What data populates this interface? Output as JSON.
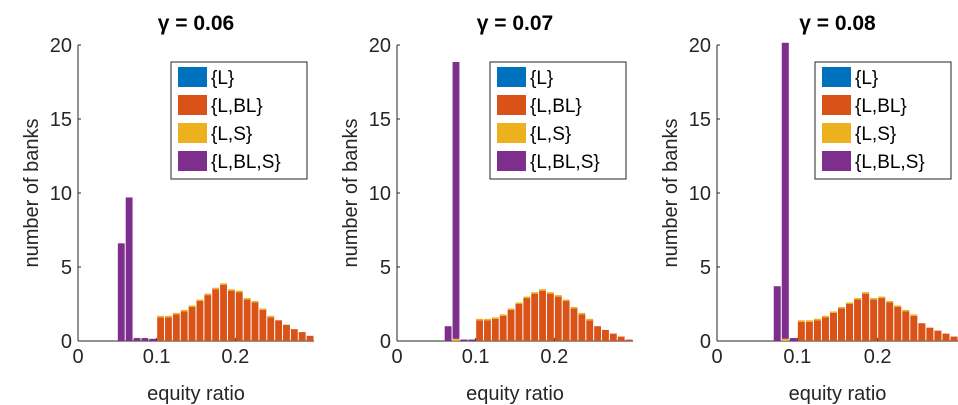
{
  "figure": {
    "background": "#ffffff",
    "series_colors": {
      "{L}": "#0072BD",
      "{L,BL}": "#D95319",
      "{L,S}": "#EDB120",
      "{L,BL,S}": "#7E2F8E"
    }
  },
  "chart_data": [
    {
      "type": "bar",
      "stacked": true,
      "title": "γ = 0.06",
      "xlabel": "equity ratio",
      "ylabel": "number of banks",
      "xlim": [
        0,
        0.3
      ],
      "ylim": [
        0,
        20
      ],
      "xticks": [
        0,
        0.1,
        0.2
      ],
      "xtick_labels": [
        "0",
        "0.1",
        "0.2"
      ],
      "yticks": [
        0,
        5,
        10,
        15,
        20
      ],
      "ytick_labels": [
        "0",
        "5",
        "10",
        "15",
        "20"
      ],
      "bin_width": 0.01,
      "legend_position": "top-right",
      "bins": [
        0.055,
        0.065,
        0.075,
        0.085,
        0.095,
        0.105,
        0.115,
        0.125,
        0.135,
        0.145,
        0.155,
        0.165,
        0.175,
        0.185,
        0.195,
        0.205,
        0.215,
        0.225,
        0.235,
        0.245,
        0.255,
        0.265,
        0.275,
        0.285,
        0.295
      ],
      "series": [
        {
          "name": "{L}",
          "values": [
            0,
            0,
            0,
            0,
            0,
            0,
            0,
            0,
            0,
            0,
            0,
            0,
            0,
            0,
            0,
            0,
            0,
            0,
            0,
            0,
            0,
            0,
            0,
            0,
            0
          ]
        },
        {
          "name": "{L,BL}",
          "values": [
            0,
            0,
            0,
            0,
            0,
            1.6,
            1.6,
            1.8,
            2.0,
            2.3,
            2.7,
            3.1,
            3.5,
            3.8,
            3.4,
            3.3,
            2.8,
            2.6,
            2.1,
            1.6,
            1.4,
            1.1,
            0.8,
            0.6,
            0.35
          ]
        },
        {
          "name": "{L,S}",
          "values": [
            0,
            0,
            0,
            0,
            0,
            0.1,
            0.1,
            0.1,
            0.1,
            0.1,
            0.1,
            0.1,
            0.1,
            0.1,
            0.1,
            0.1,
            0.1,
            0.1,
            0.1,
            0.1,
            0,
            0,
            0,
            0,
            0
          ]
        },
        {
          "name": "{L,BL,S}",
          "values": [
            6.6,
            9.7,
            0.2,
            0.2,
            0.15,
            0,
            0,
            0,
            0,
            0,
            0,
            0,
            0,
            0,
            0,
            0,
            0,
            0,
            0,
            0,
            0,
            0,
            0,
            0,
            0
          ]
        }
      ]
    },
    {
      "type": "bar",
      "stacked": true,
      "title": "γ = 0.07",
      "xlabel": "equity ratio",
      "ylabel": "number of banks",
      "xlim": [
        0,
        0.3
      ],
      "ylim": [
        0,
        20
      ],
      "xticks": [
        0,
        0.1,
        0.2
      ],
      "xtick_labels": [
        "0",
        "0.1",
        "0.2"
      ],
      "yticks": [
        0,
        5,
        10,
        15,
        20
      ],
      "ytick_labels": [
        "0",
        "5",
        "10",
        "15",
        "20"
      ],
      "bin_width": 0.01,
      "legend_position": "top-right",
      "bins": [
        0.065,
        0.075,
        0.085,
        0.095,
        0.105,
        0.115,
        0.125,
        0.135,
        0.145,
        0.155,
        0.165,
        0.175,
        0.185,
        0.195,
        0.205,
        0.215,
        0.225,
        0.235,
        0.245,
        0.255,
        0.265,
        0.275,
        0.285,
        0.295
      ],
      "series": [
        {
          "name": "{L}",
          "values": [
            0,
            0,
            0,
            0,
            0,
            0,
            0,
            0,
            0,
            0,
            0,
            0,
            0,
            0,
            0,
            0,
            0,
            0,
            0,
            0,
            0,
            0,
            0,
            0
          ]
        },
        {
          "name": "{L,BL}",
          "values": [
            0,
            0,
            0,
            0,
            1.4,
            1.4,
            1.5,
            1.7,
            2.1,
            2.5,
            2.9,
            3.2,
            3.4,
            3.2,
            3.0,
            2.7,
            2.2,
            1.8,
            1.4,
            1.0,
            0.75,
            0.5,
            0.3,
            0.1
          ]
        },
        {
          "name": "{L,S}",
          "values": [
            0,
            0.15,
            0,
            0,
            0.1,
            0.1,
            0.1,
            0.1,
            0.1,
            0.1,
            0.1,
            0.1,
            0.1,
            0.1,
            0.1,
            0.1,
            0.1,
            0.1,
            0.1,
            0,
            0,
            0,
            0,
            0
          ]
        },
        {
          "name": "{L,BL,S}",
          "values": [
            1.0,
            18.7,
            0.1,
            0.1,
            0,
            0,
            0,
            0,
            0,
            0,
            0,
            0,
            0,
            0,
            0,
            0,
            0,
            0,
            0,
            0,
            0,
            0,
            0,
            0
          ]
        }
      ]
    },
    {
      "type": "bar",
      "stacked": true,
      "title": "γ = 0.08",
      "xlabel": "equity ratio",
      "ylabel": "number of banks",
      "xlim": [
        0,
        0.3
      ],
      "ylim": [
        0,
        20
      ],
      "xticks": [
        0,
        0.1,
        0.2
      ],
      "xtick_labels": [
        "0",
        "0.1",
        "0.2"
      ],
      "yticks": [
        0,
        5,
        10,
        15,
        20
      ],
      "ytick_labels": [
        "0",
        "5",
        "10",
        "15",
        "20"
      ],
      "bin_width": 0.01,
      "legend_position": "top-right",
      "bins": [
        0.075,
        0.085,
        0.095,
        0.105,
        0.115,
        0.125,
        0.135,
        0.145,
        0.155,
        0.165,
        0.175,
        0.185,
        0.195,
        0.205,
        0.215,
        0.225,
        0.235,
        0.245,
        0.255,
        0.265,
        0.275,
        0.285,
        0.295
      ],
      "series": [
        {
          "name": "{L}",
          "values": [
            0,
            0,
            0,
            0,
            0,
            0,
            0,
            0,
            0,
            0,
            0,
            0,
            0,
            0,
            0,
            0,
            0,
            0,
            0,
            0,
            0,
            0,
            0
          ]
        },
        {
          "name": "{L,BL}",
          "values": [
            0,
            0,
            0,
            1.3,
            1.3,
            1.4,
            1.6,
            1.9,
            2.2,
            2.5,
            2.8,
            3.2,
            2.8,
            2.9,
            2.6,
            2.3,
            2.0,
            1.7,
            1.2,
            0.9,
            0.7,
            0.5,
            0.3
          ]
        },
        {
          "name": "{L,S}",
          "values": [
            0,
            0.15,
            0,
            0.1,
            0.1,
            0.1,
            0.1,
            0.1,
            0.1,
            0.1,
            0.1,
            0.1,
            0.1,
            0.1,
            0.1,
            0.1,
            0.1,
            0.1,
            0,
            0,
            0,
            0,
            0
          ]
        },
        {
          "name": "{L,BL,S}",
          "values": [
            3.7,
            20,
            0.2,
            0,
            0,
            0,
            0,
            0,
            0,
            0,
            0,
            0,
            0,
            0,
            0,
            0,
            0,
            0,
            0,
            0,
            0,
            0,
            0
          ]
        }
      ]
    }
  ]
}
